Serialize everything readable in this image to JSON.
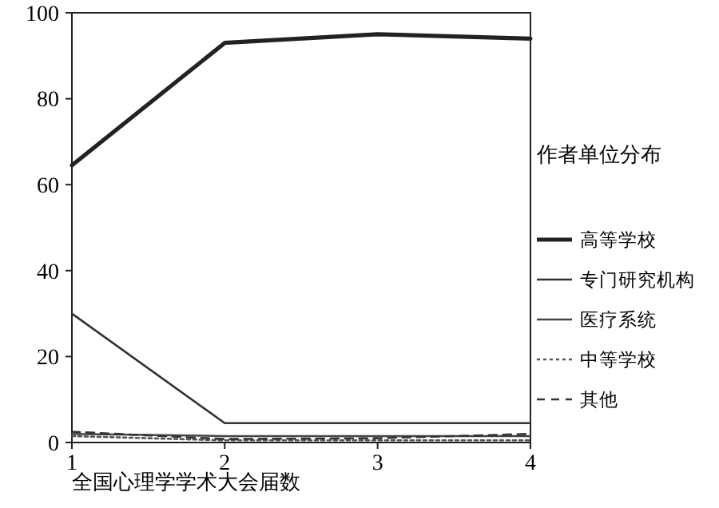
{
  "chart_data": {
    "type": "line",
    "xlabel": "全国心理学学术大会届数",
    "legend_title": "作者单位分布",
    "x": [
      1,
      2,
      3,
      4
    ],
    "xlim": [
      1,
      4
    ],
    "xticks": [
      1,
      2,
      3,
      4
    ],
    "ylim": [
      0,
      100
    ],
    "yticks": [
      0,
      20,
      40,
      60,
      80,
      100
    ],
    "legend": "right",
    "grid": false,
    "series": [
      {
        "name": "高等学校",
        "color": "#222222",
        "values": [
          64.5,
          93,
          95,
          94
        ],
        "line_style": "solid"
      },
      {
        "name": "专门研究机构",
        "color": "#333333",
        "values": [
          30,
          4.5,
          4.5,
          4.5
        ],
        "line_style": "solid"
      },
      {
        "name": "医疗系统",
        "color": "#444444",
        "values": [
          2,
          1.5,
          1.5,
          1.5
        ],
        "line_style": "solid"
      },
      {
        "name": "中等学校",
        "color": "#555555",
        "values": [
          1.5,
          0.5,
          0.5,
          0.5
        ],
        "line_style": "dotted"
      },
      {
        "name": "其他",
        "color": "#333333",
        "values": [
          2.5,
          0.8,
          1,
          2
        ],
        "line_style": "dashed"
      }
    ]
  }
}
